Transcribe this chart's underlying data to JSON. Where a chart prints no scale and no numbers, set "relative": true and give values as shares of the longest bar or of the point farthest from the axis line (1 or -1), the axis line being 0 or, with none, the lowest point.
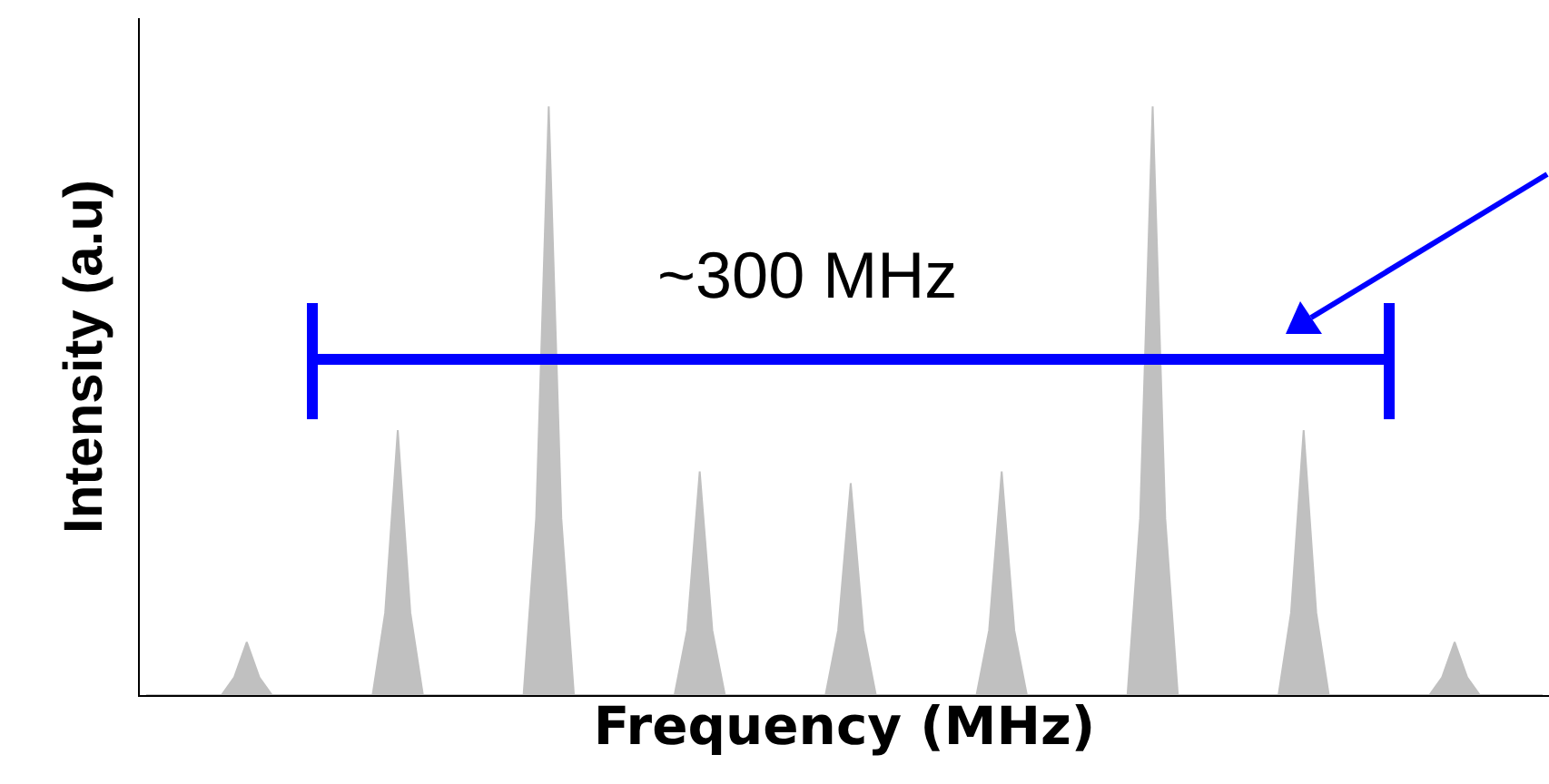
{
  "chart_data": {
    "type": "area",
    "relative": true,
    "xlabel": "Frequency (MHz)",
    "ylabel": "Intensity (a.u)",
    "color": "#c0c0c0",
    "annotations": [
      "~300 MHz"
    ],
    "categories": [
      null,
      null,
      null,
      null,
      null,
      null,
      null,
      null,
      null,
      null,
      null,
      null,
      null,
      null,
      null,
      null,
      null,
      null,
      null,
      null,
      null,
      null,
      null,
      null,
      null,
      null,
      null,
      null,
      null,
      null,
      null,
      null,
      null,
      null,
      null,
      null,
      null,
      null,
      null,
      null,
      null,
      null,
      null,
      null,
      null,
      null,
      null,
      null,
      null,
      null,
      null,
      null,
      null,
      null,
      null,
      null,
      null,
      null,
      null,
      null,
      null,
      null,
      null,
      null,
      null,
      null,
      null,
      null,
      null,
      null,
      null,
      null,
      null,
      null,
      null,
      null,
      null,
      null,
      null,
      null,
      null,
      null,
      null,
      null,
      null,
      null,
      null,
      null,
      null,
      null,
      null,
      null,
      null,
      null,
      null,
      null,
      null,
      null,
      null,
      null,
      null,
      null,
      null,
      null,
      null,
      null,
      null,
      null,
      null,
      null,
      null,
      null
    ],
    "values": [
      0,
      0,
      0,
      0,
      0,
      0,
      0,
      0.03,
      0.09,
      0.03,
      0,
      0,
      0,
      0,
      0,
      0,
      0,
      0,
      0,
      0.14,
      0.45,
      0.14,
      0,
      0,
      0,
      0,
      0,
      0,
      0,
      0,
      0,
      0.3,
      1,
      0.3,
      0,
      0,
      0,
      0,
      0,
      0,
      0,
      0,
      0,
      0.11,
      0.38,
      0.11,
      0,
      0,
      0,
      0,
      0,
      0,
      0,
      0,
      0,
      0.11,
      0.36,
      0.11,
      0,
      0,
      0,
      0,
      0,
      0,
      0,
      0,
      0,
      0.11,
      0.38,
      0.11,
      0,
      0,
      0,
      0,
      0,
      0,
      0,
      0,
      0,
      0.3,
      1,
      0.3,
      0,
      0,
      0,
      0,
      0,
      0,
      0,
      0,
      0,
      0.14,
      0.45,
      0.14,
      0,
      0,
      0,
      0,
      0,
      0,
      0,
      0,
      0,
      0.03,
      0.09,
      0.03,
      0,
      0,
      0,
      0,
      0,
      0
    ]
  }
}
